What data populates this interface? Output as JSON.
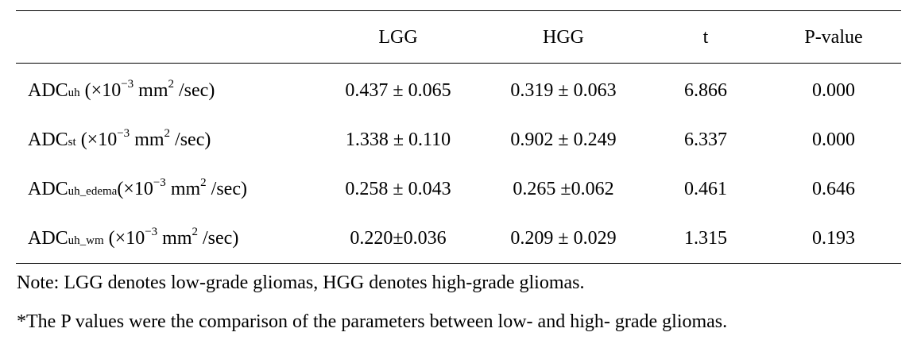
{
  "table": {
    "headers": [
      "",
      "LGG",
      "HGG",
      "t",
      "P-value"
    ],
    "rows": [
      {
        "label": {
          "main": "ADC",
          "sub": "uh",
          "pre": " (×10",
          "sup": "−3",
          "mid": " mm",
          "sup2": "2",
          "post": " /sec)"
        },
        "lgg": "0.437 ± 0.065",
        "hgg": "0.319 ± 0.063",
        "t": "6.866",
        "p": "0.000"
      },
      {
        "label": {
          "main": "ADC",
          "sub": "st",
          "pre": " (×10",
          "sup": "−3",
          "mid": " mm",
          "sup2": "2",
          "post": " /sec)"
        },
        "lgg": "1.338 ± 0.110",
        "hgg": "0.902 ± 0.249",
        "t": "6.337",
        "p": "0.000"
      },
      {
        "label": {
          "main": "ADC",
          "sub": "uh_edema",
          "pre": "(×10",
          "sup": "−3",
          "mid": " mm",
          "sup2": "2",
          "post": " /sec)"
        },
        "lgg": "0.258 ± 0.043",
        "hgg": "0.265 ±0.062",
        "t": "0.461",
        "p": "0.646"
      },
      {
        "label": {
          "main": "ADC",
          "sub": "uh_wm",
          "pre": " (×10",
          "sup": "−3",
          "mid": " mm",
          "sup2": "2",
          "post": " /sec)"
        },
        "lgg": "0.220±0.036",
        "hgg": "0.209 ± 0.029",
        "t": "1.315",
        "p": "0.193"
      }
    ]
  },
  "notes": [
    "Note: LGG denotes low-grade gliomas, HGG denotes high-grade gliomas.",
    "*The P values were the comparison of the parameters between low- and high- grade gliomas."
  ]
}
